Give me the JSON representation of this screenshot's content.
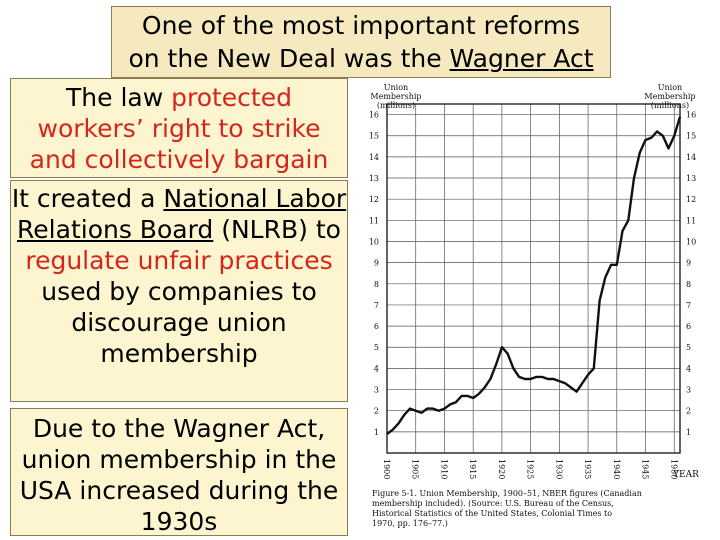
{
  "slide": {
    "title_line1": "One of the most important reforms",
    "title_line2_prefix": "on the New Deal was the ",
    "title_line2_link": "Wagner Act",
    "box1": {
      "part1": "The law ",
      "part2_red": "protected workers’ right to strike and collectively bargain"
    },
    "box2": {
      "part1": "It created a ",
      "part2_underlined": "National Labor Relations Board",
      "part3": " (NLRB) to ",
      "part4_red": "regulate unfair practices",
      "part5": " used by companies to discourage union membership"
    },
    "box3": {
      "text": "Due to the Wagner Act, union membership in the USA increased during the 1930s"
    }
  },
  "chart_data": {
    "type": "line",
    "ylabel_left": "Union Membership (millions)",
    "ylabel_right": "Union Membership (millions)",
    "xlabel": "YEAR",
    "x_ticks": [
      "1900",
      "1905",
      "1910",
      "1915",
      "1920",
      "1925",
      "1930",
      "1935",
      "1940",
      "1945",
      "1950"
    ],
    "y_ticks": [
      "1",
      "2",
      "3",
      "4",
      "5",
      "6",
      "7",
      "8",
      "9",
      "10",
      "11",
      "12",
      "13",
      "14",
      "15",
      "16"
    ],
    "ylim": [
      0,
      16.5
    ],
    "xlim": [
      1900,
      1951
    ],
    "grid": true,
    "series": [
      {
        "x": [
          1900,
          1901,
          1902,
          1903,
          1904,
          1905,
          1906,
          1907,
          1908,
          1909,
          1910,
          1911,
          1912,
          1913,
          1914,
          1915,
          1916,
          1917,
          1918,
          1919,
          1920,
          1921,
          1922,
          1923,
          1924,
          1925,
          1926,
          1927,
          1928,
          1929,
          1930,
          1931,
          1932,
          1933,
          1934,
          1935,
          1936,
          1937,
          1938,
          1939,
          1940,
          1941,
          1942,
          1943,
          1944,
          1945,
          1946,
          1947,
          1948,
          1949,
          1950,
          1951
        ],
        "y": [
          0.9,
          1.1,
          1.4,
          1.8,
          2.1,
          2.0,
          1.9,
          2.1,
          2.1,
          2.0,
          2.1,
          2.3,
          2.4,
          2.7,
          2.7,
          2.6,
          2.8,
          3.1,
          3.5,
          4.2,
          5.0,
          4.7,
          4.0,
          3.6,
          3.5,
          3.5,
          3.6,
          3.6,
          3.5,
          3.5,
          3.4,
          3.3,
          3.1,
          2.9,
          3.3,
          3.7,
          4.0,
          7.2,
          8.3,
          8.9,
          8.9,
          10.5,
          11.0,
          13.0,
          14.2,
          14.8,
          14.9,
          15.2,
          15.0,
          14.4,
          15.0,
          15.9
        ]
      }
    ],
    "caption": "Figure 5-1. Union Membership, 1900–51, NBER figures (Canadian membership included). (Source: U.S. Bureau of the Census, Historical Statistics of the United States, Colonial Times to 1970, pp. 176–77.)"
  }
}
